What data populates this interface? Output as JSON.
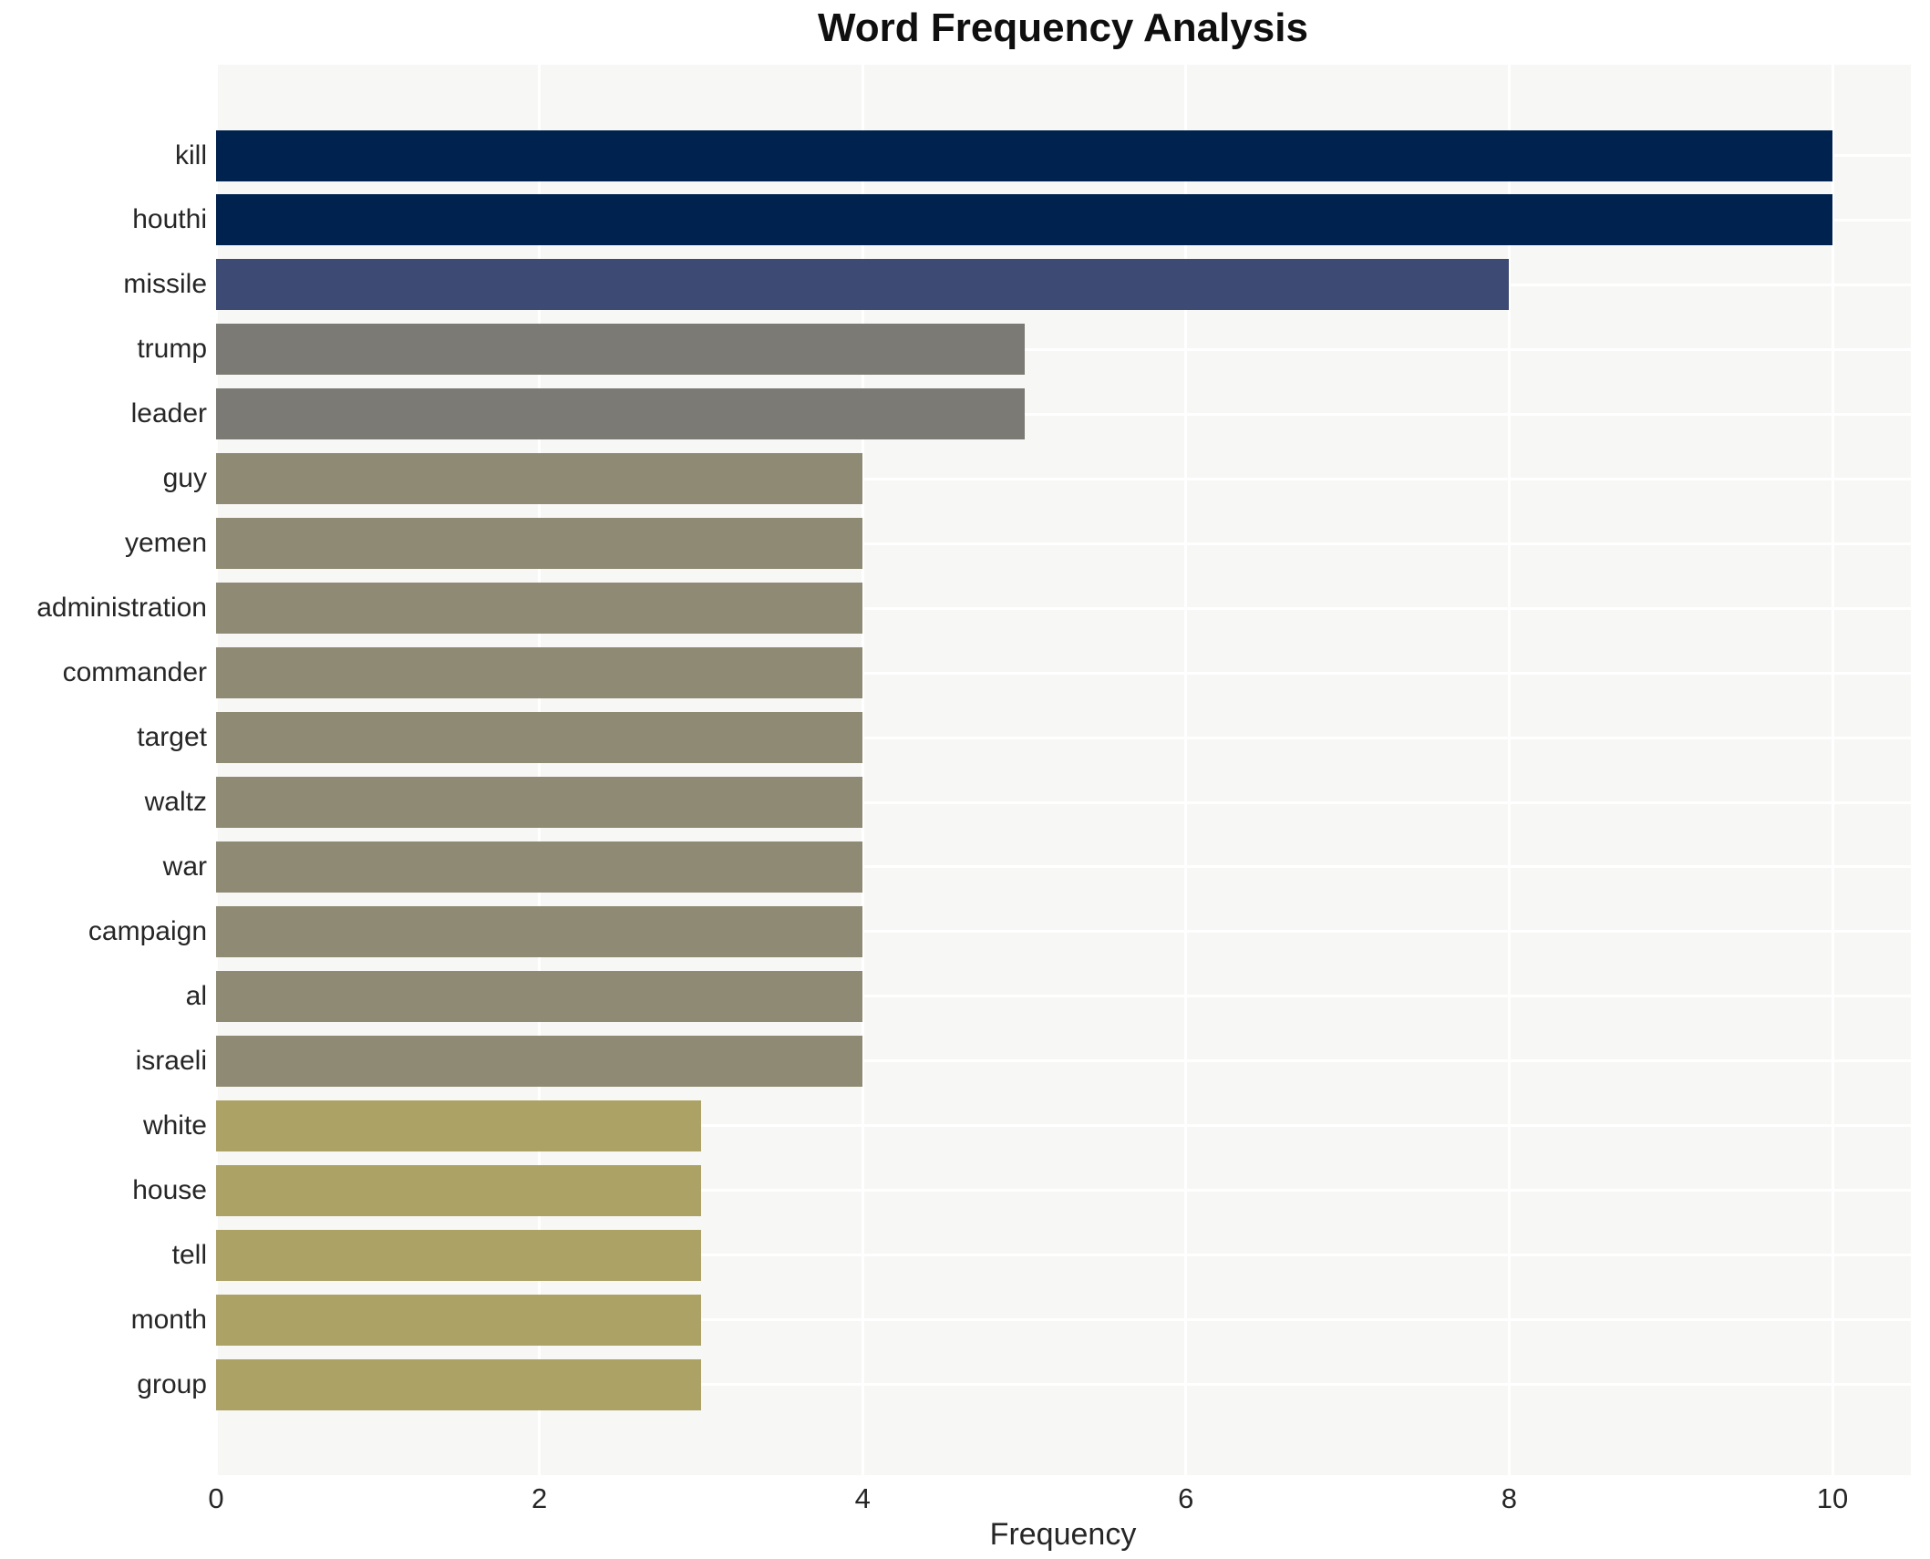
{
  "chart_data": {
    "type": "bar",
    "orientation": "horizontal",
    "title": "Word Frequency Analysis",
    "xlabel": "Frequency",
    "ylabel": "",
    "categories": [
      "kill",
      "houthi",
      "missile",
      "trump",
      "leader",
      "guy",
      "yemen",
      "administration",
      "commander",
      "target",
      "waltz",
      "war",
      "campaign",
      "al",
      "israeli",
      "white",
      "house",
      "tell",
      "month",
      "group"
    ],
    "values": [
      10,
      10,
      8,
      5,
      5,
      4,
      4,
      4,
      4,
      4,
      4,
      4,
      4,
      4,
      4,
      3,
      3,
      3,
      3,
      3
    ],
    "bar_colors": [
      "#00224e",
      "#00224e",
      "#3d4a73",
      "#7b7a74",
      "#7b7a74",
      "#8f8a73",
      "#8f8a73",
      "#8f8a73",
      "#8f8a73",
      "#8f8a73",
      "#8f8a73",
      "#8f8a73",
      "#8f8a73",
      "#8f8a73",
      "#8f8a73",
      "#ada266",
      "#ada266",
      "#ada266",
      "#ada266",
      "#ada266"
    ],
    "xticks": [
      0,
      2,
      4,
      6,
      8,
      10
    ],
    "xlim": [
      0,
      10.5
    ],
    "grid": "on",
    "gridline_color": "#ffffff",
    "plot_background": "#f7f7f5",
    "legend": "none",
    "value_color_map": {
      "10": "#00224e",
      "8": "#3d4a73",
      "5": "#7b7a74",
      "4": "#8f8a73",
      "3": "#ada266"
    }
  }
}
